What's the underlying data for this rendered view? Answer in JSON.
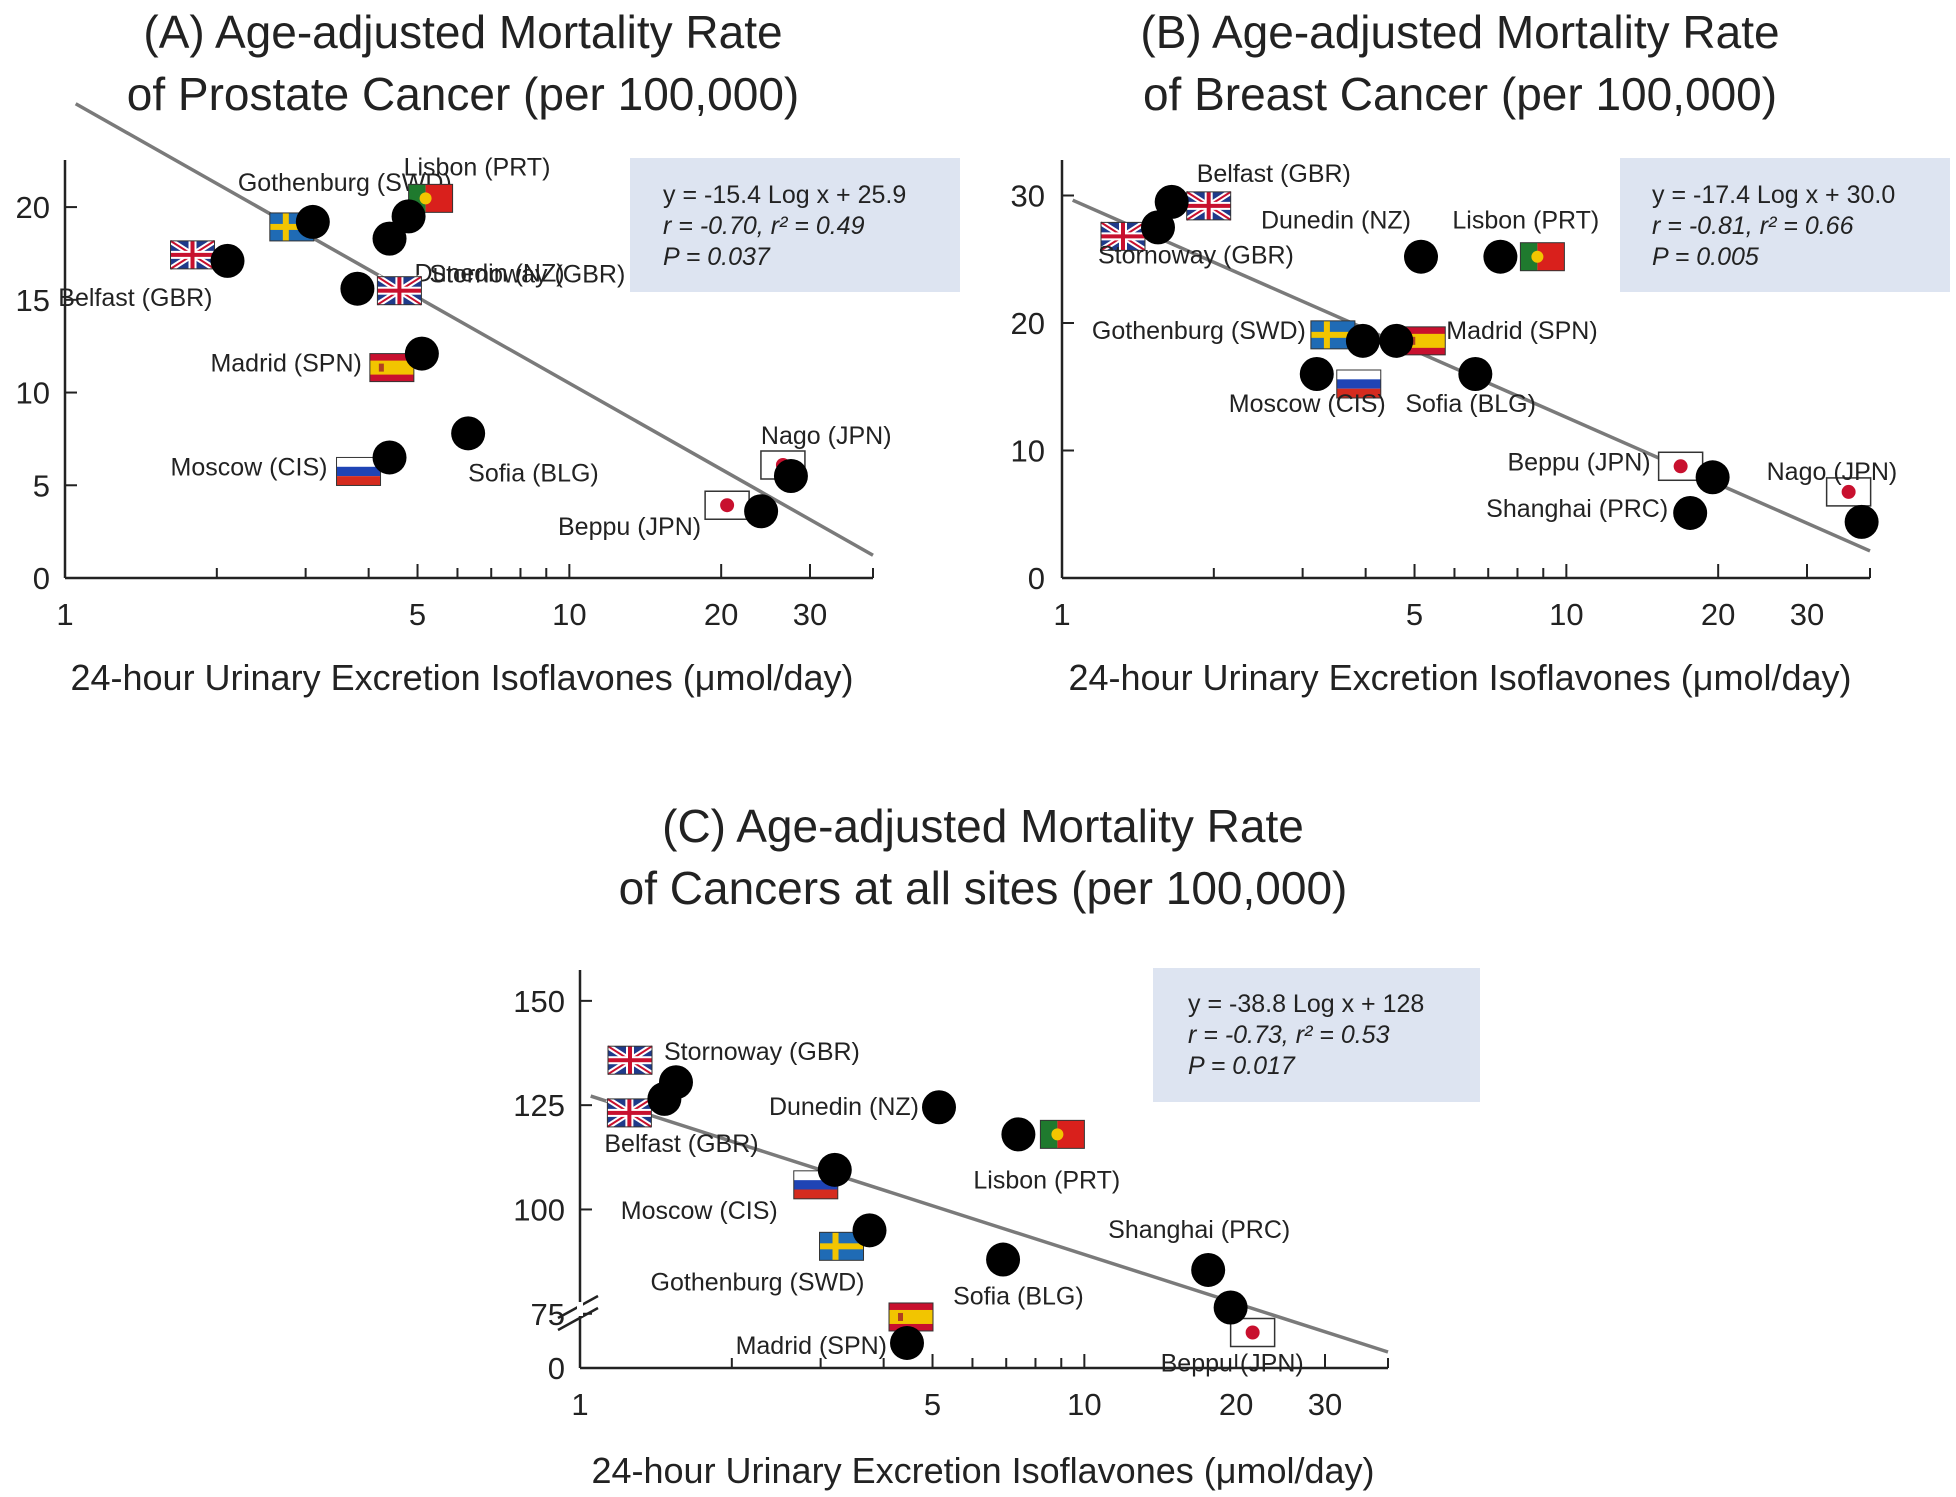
{
  "chart_data": [
    {
      "type": "scatter",
      "title_lines": [
        "(A) Age-adjusted Mortality Rate",
        "of Prostate Cancer (per 100,000)"
      ],
      "xlabel": "24-hour Urinary Excretion Isoflavones (μmol/day)",
      "ylabel": "",
      "xscale": "log",
      "xlim": [
        1,
        40
      ],
      "ylim": [
        0,
        22
      ],
      "xticks": [
        1,
        5,
        10,
        20,
        30
      ],
      "yticks": [
        0,
        5,
        10,
        15,
        20
      ],
      "regression": {
        "slope": -15.4,
        "intercept": 25.9
      },
      "stats": {
        "eq": "y = -15.4 Log x + 25.9",
        "r": "r = -0.70, r² = 0.49",
        "p": "P = 0.037"
      },
      "points": [
        {
          "label": "Belfast (GBR)",
          "x": 2.1,
          "y": 17.1,
          "flag": "uk"
        },
        {
          "label": "Gothenburg (SWD)",
          "x": 3.1,
          "y": 19.2,
          "flag": "sweden"
        },
        {
          "label": "Lisbon (PRT)",
          "x": 4.8,
          "y": 19.5,
          "flag": "portugal"
        },
        {
          "label": "Dunedin (NZ)",
          "x": 4.4,
          "y": 18.3,
          "flag": ""
        },
        {
          "label": "Stornoway (GBR)",
          "x": 3.8,
          "y": 15.6,
          "flag": "uk"
        },
        {
          "label": "Madrid (SPN)",
          "x": 5.1,
          "y": 12.1,
          "flag": "spain"
        },
        {
          "label": "Moscow (CIS)",
          "x": 4.4,
          "y": 6.5,
          "flag": "russia"
        },
        {
          "label": "Sofia (BLG)",
          "x": 6.3,
          "y": 7.8,
          "flag": ""
        },
        {
          "label": "Nago (JPN)",
          "x": 27.5,
          "y": 5.5,
          "flag": "japan"
        },
        {
          "label": "Beppu (JPN)",
          "x": 24.0,
          "y": 3.6,
          "flag": "japan"
        }
      ]
    },
    {
      "type": "scatter",
      "title_lines": [
        "(B) Age-adjusted Mortality Rate",
        "of Breast Cancer (per 100,000)"
      ],
      "xlabel": "24-hour Urinary Excretion Isoflavones (μmol/day)",
      "ylabel": "",
      "xscale": "log",
      "xlim": [
        1,
        40
      ],
      "ylim": [
        0,
        32
      ],
      "xticks": [
        1,
        5,
        10,
        20,
        30
      ],
      "yticks": [
        0,
        10,
        20,
        30
      ],
      "regression": {
        "slope": -17.4,
        "intercept": 30.0
      },
      "stats": {
        "eq": "y = -17.4 Log x + 30.0",
        "r": "r = -0.81, r² = 0.66",
        "p": "P = 0.005"
      },
      "points": [
        {
          "label": "Belfast (GBR)",
          "x": 1.65,
          "y": 29.5,
          "flag": "uk"
        },
        {
          "label": "Stornoway (GBR)",
          "x": 1.55,
          "y": 27.5,
          "flag": "uk"
        },
        {
          "label": "Dunedin (NZ)",
          "x": 5.15,
          "y": 25.2,
          "flag": ""
        },
        {
          "label": "Lisbon (PRT)",
          "x": 7.4,
          "y": 25.2,
          "flag": "portugal"
        },
        {
          "label": "Gothenburg (SWD)",
          "x": 3.95,
          "y": 18.6,
          "flag": "sweden"
        },
        {
          "label": "Madrid (SPN)",
          "x": 4.6,
          "y": 18.6,
          "flag": "spain"
        },
        {
          "label": "Moscow (CIS)",
          "x": 3.2,
          "y": 16.0,
          "flag": "russia"
        },
        {
          "label": "Sofia (BLG)",
          "x": 6.6,
          "y": 16.0,
          "flag": ""
        },
        {
          "label": "Beppu (JPN)",
          "x": 19.5,
          "y": 7.9,
          "flag": "japan"
        },
        {
          "label": "Shanghai (PRC)",
          "x": 17.6,
          "y": 5.1,
          "flag": ""
        },
        {
          "label": "Nago (JPN)",
          "x": 38.5,
          "y": 4.4,
          "flag": "japan"
        }
      ]
    },
    {
      "type": "scatter",
      "title_lines": [
        "(C) Age-adjusted Mortality Rate",
        "of Cancers at all sites (per 100,000)"
      ],
      "xlabel": "24-hour Urinary Excretion Isoflavones (μmol/day)",
      "ylabel": "",
      "xscale": "log",
      "xlim": [
        1,
        40
      ],
      "ylim": [
        62,
        155
      ],
      "axis_break": true,
      "xticks": [
        1,
        5,
        10,
        20,
        30
      ],
      "yticks": [
        75,
        100,
        125,
        150
      ],
      "y_zero_label": "0",
      "regression": {
        "slope": -38.8,
        "intercept": 128
      },
      "stats": {
        "eq": "y = -38.8 Log x + 128",
        "r": "r = -0.73, r² = 0.53",
        "p": "P = 0.017"
      },
      "points": [
        {
          "label": "Stornoway (GBR)",
          "x": 1.55,
          "y": 130.5,
          "flag": "uk"
        },
        {
          "label": "Belfast (GBR)",
          "x": 1.47,
          "y": 126.5,
          "flag": "uk"
        },
        {
          "label": "Dunedin (NZ)",
          "x": 5.15,
          "y": 124.5,
          "flag": ""
        },
        {
          "label": "Lisbon (PRT)",
          "x": 7.4,
          "y": 118.0,
          "flag": "portugal"
        },
        {
          "label": "Moscow (CIS)",
          "x": 3.2,
          "y": 109.5,
          "flag": "russia"
        },
        {
          "label": "Gothenburg (SWD)",
          "x": 3.75,
          "y": 95.0,
          "flag": "sweden"
        },
        {
          "label": "Sofia (BLG)",
          "x": 6.9,
          "y": 88.0,
          "flag": ""
        },
        {
          "label": "Shanghai (PRC)",
          "x": 17.6,
          "y": 85.5,
          "flag": ""
        },
        {
          "label": "Madrid (SPN)",
          "x": 4.45,
          "y": 68.0,
          "flag": "spain"
        },
        {
          "label": "Beppu (JPN)",
          "x": 19.5,
          "y": 76.5,
          "flag": "japan"
        }
      ]
    }
  ]
}
